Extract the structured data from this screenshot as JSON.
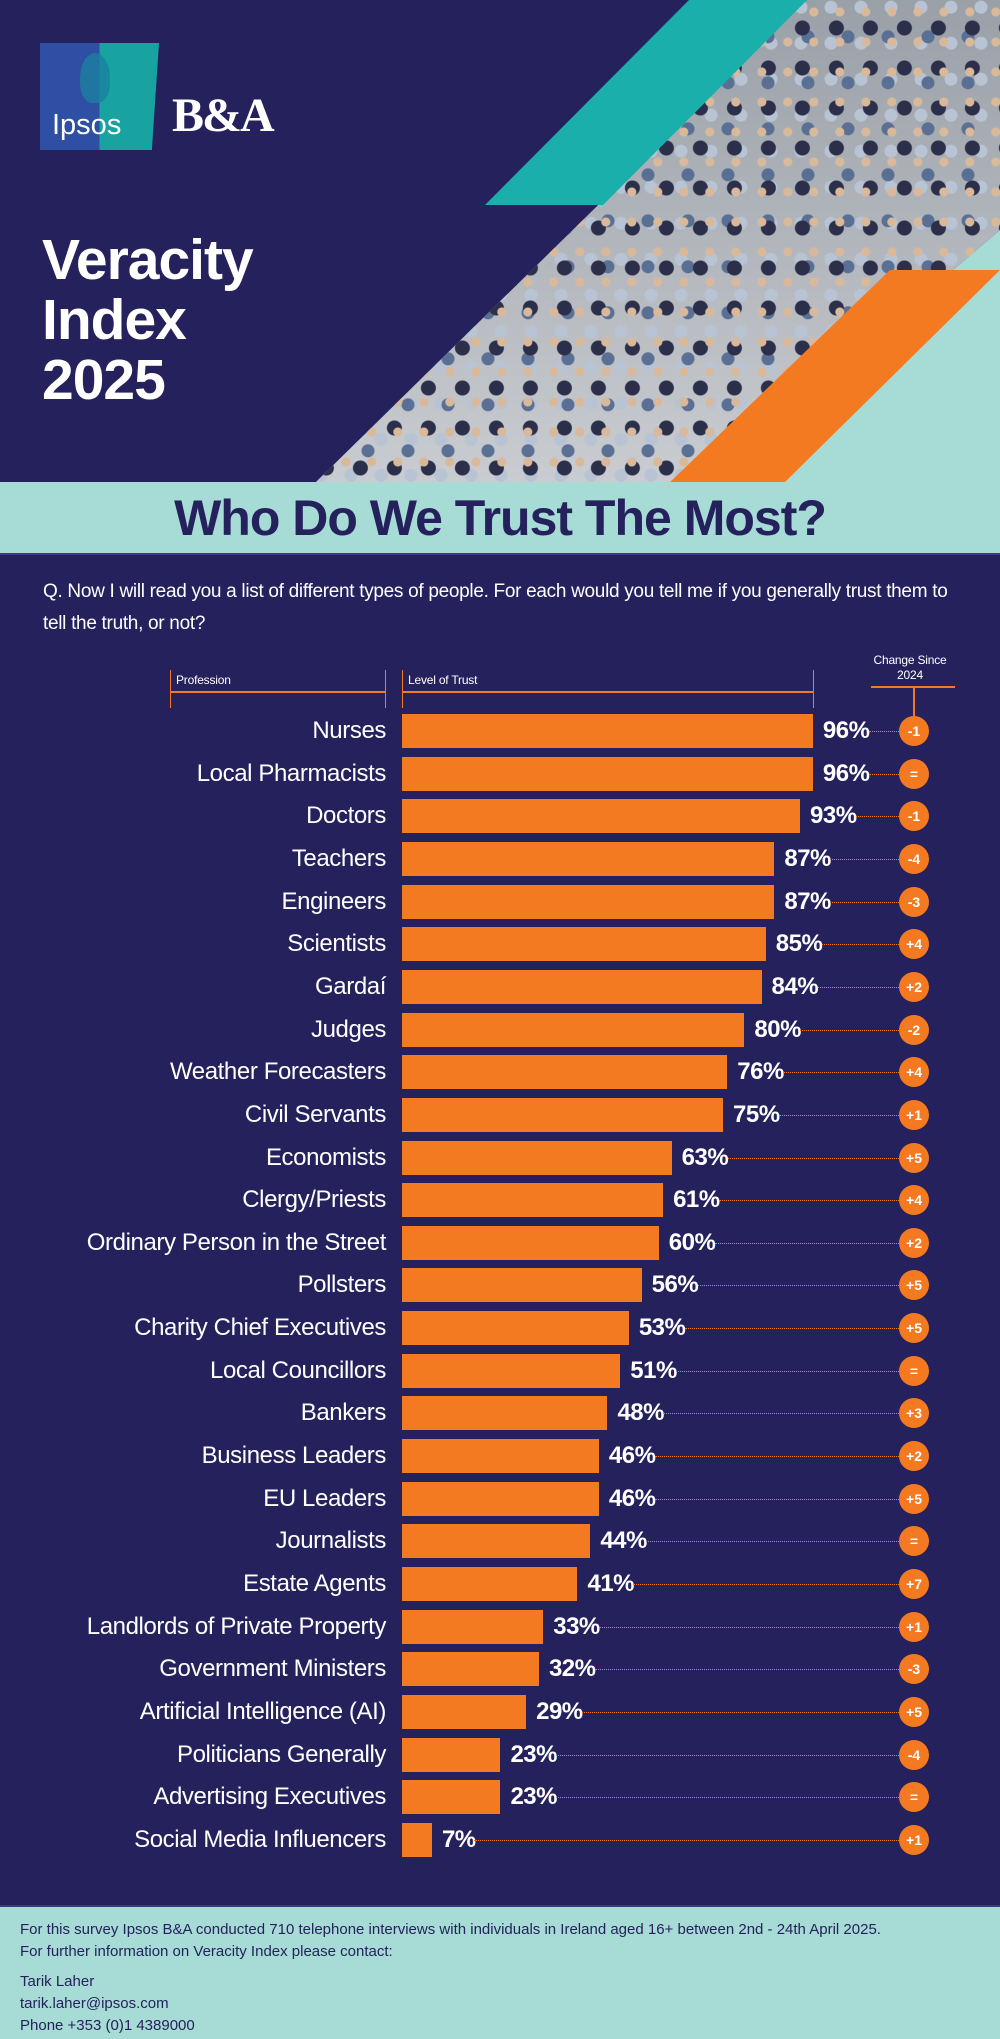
{
  "brand": {
    "logo_text": "Ipsos",
    "partner": "B&A",
    "colors": {
      "navy": "#25215c",
      "orange": "#f47a22",
      "teal": "#1aafab",
      "light_teal": "#a6dcd5"
    }
  },
  "title": {
    "line1": "Veracity",
    "line2": "Index",
    "line3": "2025"
  },
  "headline": "Who Do We Trust The Most?",
  "question": "Q. Now I will read you a list of different types of people. For each would you tell me if you generally trust them to tell the truth, or not?",
  "chart_data": {
    "type": "bar",
    "orientation": "horizontal",
    "title": "Who Do We Trust The Most?",
    "column_headers": {
      "profession": "Profession",
      "trust": "Level of Trust",
      "change_line1": "Change Since",
      "change_line2": "2024"
    },
    "xlim": [
      0,
      100
    ],
    "categories": [
      "Nurses",
      "Local Pharmacists",
      "Doctors",
      "Teachers",
      "Engineers",
      "Scientists",
      "Gardaí",
      "Judges",
      "Weather Forecasters",
      "Civil Servants",
      "Economists",
      "Clergy/Priests",
      "Ordinary Person in the Street",
      "Pollsters",
      "Charity Chief Executives",
      "Local Councillors",
      "Bankers",
      "Business Leaders",
      "EU Leaders",
      "Journalists",
      "Estate Agents",
      "Landlords of Private Property",
      "Government Ministers",
      "Artificial Intelligence (AI)",
      "Politicians Generally",
      "Advertising Executives",
      "Social Media Influencers"
    ],
    "values": [
      96,
      96,
      93,
      87,
      87,
      85,
      84,
      80,
      76,
      75,
      63,
      61,
      60,
      56,
      53,
      51,
      48,
      46,
      46,
      44,
      41,
      33,
      32,
      29,
      23,
      23,
      7
    ],
    "value_labels": [
      "96%",
      "96%",
      "93%",
      "87%",
      "87%",
      "85%",
      "84%",
      "80%",
      "76%",
      "75%",
      "63%",
      "61%",
      "60%",
      "56%",
      "53%",
      "51%",
      "48%",
      "46%",
      "46%",
      "44%",
      "41%",
      "33%",
      "32%",
      "29%",
      "23%",
      "23%",
      "7%"
    ],
    "change_since_2024": [
      "-1",
      "=",
      "-1",
      "-4",
      "-3",
      "+4",
      "+2",
      "-2",
      "+4",
      "+1",
      "+5",
      "+4",
      "+2",
      "+5",
      "+5",
      "=",
      "+3",
      "+2",
      "+5",
      "=",
      "+7",
      "+1",
      "-3",
      "+5",
      "-4",
      "=",
      "+1"
    ]
  },
  "footer": {
    "line1": "For this survey Ipsos B&A conducted 710 telephone interviews with individuals in Ireland aged 16+ between 2nd - 24th April 2025.",
    "line2": "For further information on Veracity Index please contact:",
    "name": "Tarik Laher",
    "email": "tarik.laher@ipsos.com",
    "phone": "Phone +353 (0)1 4389000"
  }
}
